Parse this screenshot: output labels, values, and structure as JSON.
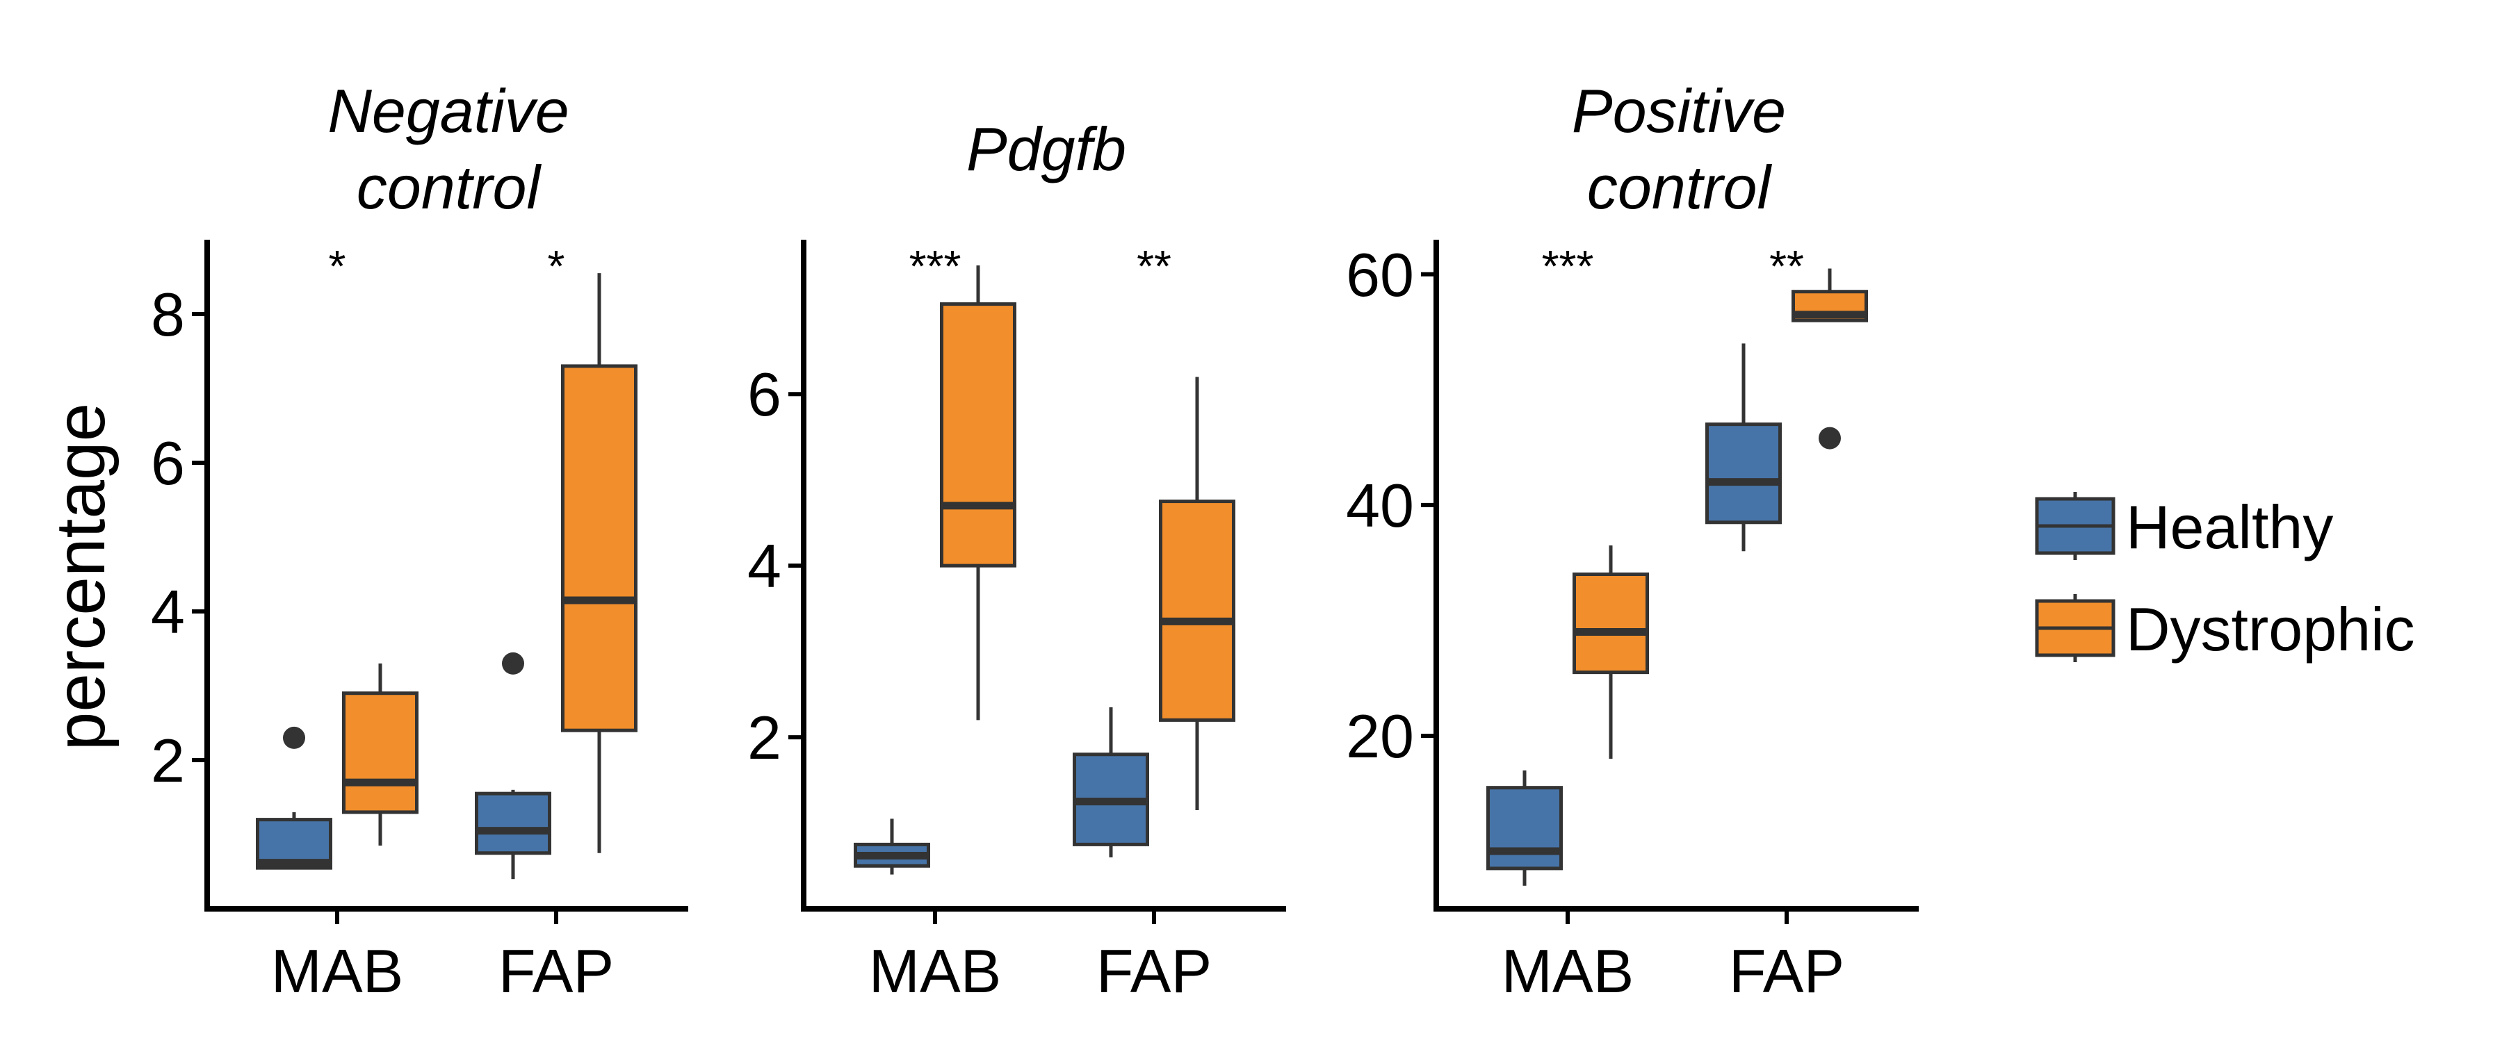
{
  "chart_data": {
    "type": "boxplot",
    "ylabel": "percentage",
    "categories": [
      "MAB",
      "FAP"
    ],
    "colors": {
      "Healthy": "#4774a8",
      "Dystrophic": "#f28e2b",
      "outline": "#333333"
    },
    "legend": {
      "position": "right",
      "entries": [
        {
          "label": "Healthy",
          "color": "#4774a8"
        },
        {
          "label": "Dystrophic",
          "color": "#f28e2b"
        }
      ]
    },
    "panels": [
      {
        "title_lines": [
          "Negative",
          "control"
        ],
        "ylim": [
          0.0,
          9.0
        ],
        "yticks": [
          2,
          4,
          6,
          8
        ],
        "significance": [
          "*",
          "*"
        ],
        "boxes": [
          {
            "category": "MAB",
            "group": "Healthy",
            "whisker_low": 0.55,
            "q1": 0.55,
            "median": 0.62,
            "q3": 1.2,
            "whisker_high": 1.3,
            "outliers": [
              2.3
            ]
          },
          {
            "category": "MAB",
            "group": "Dystrophic",
            "whisker_low": 0.85,
            "q1": 1.3,
            "median": 1.7,
            "q3": 2.9,
            "whisker_high": 3.3,
            "outliers": []
          },
          {
            "category": "FAP",
            "group": "Healthy",
            "whisker_low": 0.4,
            "q1": 0.75,
            "median": 1.05,
            "q3": 1.55,
            "whisker_high": 1.6,
            "outliers": [
              3.3
            ]
          },
          {
            "category": "FAP",
            "group": "Dystrophic",
            "whisker_low": 0.75,
            "q1": 2.4,
            "median": 4.15,
            "q3": 7.3,
            "whisker_high": 8.55,
            "outliers": []
          }
        ]
      },
      {
        "title_lines": [
          "Pdgfb"
        ],
        "ylim": [
          0.0,
          7.8
        ],
        "yticks": [
          2,
          4,
          6
        ],
        "significance": [
          "***",
          "**"
        ],
        "boxes": [
          {
            "category": "MAB",
            "group": "Healthy",
            "whisker_low": 0.4,
            "q1": 0.5,
            "median": 0.62,
            "q3": 0.75,
            "whisker_high": 1.05,
            "outliers": []
          },
          {
            "category": "MAB",
            "group": "Dystrophic",
            "whisker_low": 2.2,
            "q1": 4.0,
            "median": 4.7,
            "q3": 7.05,
            "whisker_high": 7.5,
            "outliers": []
          },
          {
            "category": "FAP",
            "group": "Healthy",
            "whisker_low": 0.6,
            "q1": 0.75,
            "median": 1.25,
            "q3": 1.8,
            "whisker_high": 2.35,
            "outliers": []
          },
          {
            "category": "FAP",
            "group": "Dystrophic",
            "whisker_low": 1.15,
            "q1": 2.2,
            "median": 3.35,
            "q3": 4.75,
            "whisker_high": 6.2,
            "outliers": []
          }
        ]
      },
      {
        "title_lines": [
          "Positive",
          "control"
        ],
        "ylim": [
          5.0,
          63.0
        ],
        "yticks": [
          20,
          40,
          60
        ],
        "significance": [
          "***",
          "**"
        ],
        "boxes": [
          {
            "category": "MAB",
            "group": "Healthy",
            "whisker_low": 7.0,
            "q1": 8.5,
            "median": 10.0,
            "q3": 15.5,
            "whisker_high": 17.0,
            "outliers": []
          },
          {
            "category": "MAB",
            "group": "Dystrophic",
            "whisker_low": 18.0,
            "q1": 25.5,
            "median": 29.0,
            "q3": 34.0,
            "whisker_high": 36.5,
            "outliers": []
          },
          {
            "category": "FAP",
            "group": "Healthy",
            "whisker_low": 36.0,
            "q1": 38.5,
            "median": 42.0,
            "q3": 47.0,
            "whisker_high": 54.0,
            "outliers": []
          },
          {
            "category": "FAP",
            "group": "Dystrophic",
            "whisker_low": 56.0,
            "q1": 56.0,
            "median": 56.5,
            "q3": 58.5,
            "whisker_high": 60.5,
            "outliers": [
              45.8
            ]
          }
        ]
      }
    ]
  }
}
